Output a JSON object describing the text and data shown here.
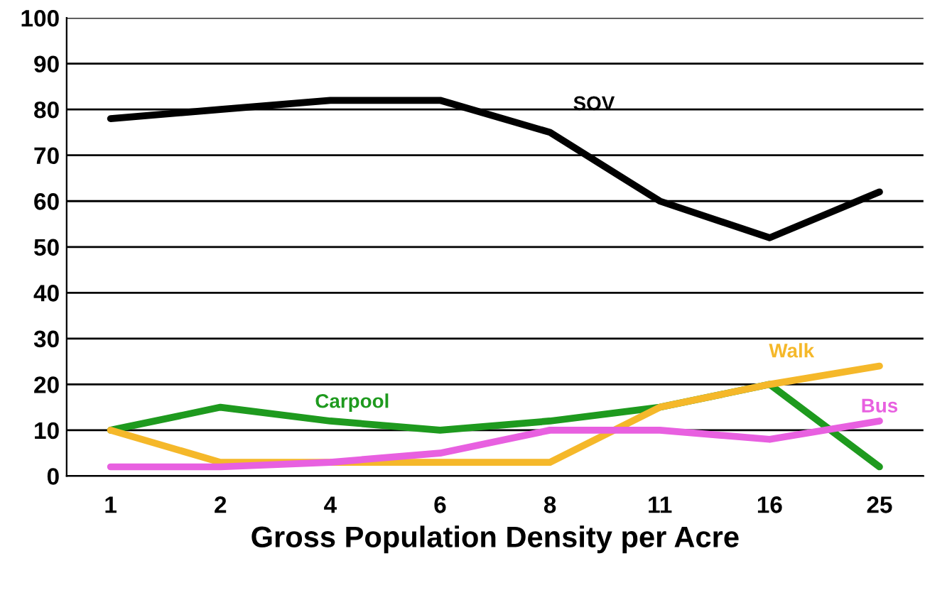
{
  "chart_data": {
    "type": "line",
    "xlabel": "Gross Population Density per Acre",
    "categories": [
      "1",
      "2",
      "4",
      "6",
      "8",
      "11",
      "16",
      "25"
    ],
    "ylim": [
      0,
      100
    ],
    "yticks": [
      0,
      10,
      20,
      30,
      40,
      50,
      60,
      70,
      80,
      90,
      100
    ],
    "grid": "y",
    "legend": false,
    "marker": "none",
    "line_style": "solid",
    "series": [
      {
        "name": "SOV",
        "color": "#000000",
        "values": [
          78,
          80,
          82,
          82,
          75,
          60,
          52,
          62
        ]
      },
      {
        "name": "Carpool",
        "color": "#1e9a1e",
        "values": [
          10,
          15,
          12,
          10,
          12,
          15,
          20,
          2
        ]
      },
      {
        "name": "Walk",
        "color": "#f5b82a",
        "values": [
          10,
          3,
          3,
          3,
          3,
          15,
          20,
          24
        ]
      },
      {
        "name": "Bus",
        "color": "#e860e0",
        "values": [
          2,
          2,
          3,
          5,
          10,
          10,
          8,
          12
        ]
      }
    ]
  }
}
